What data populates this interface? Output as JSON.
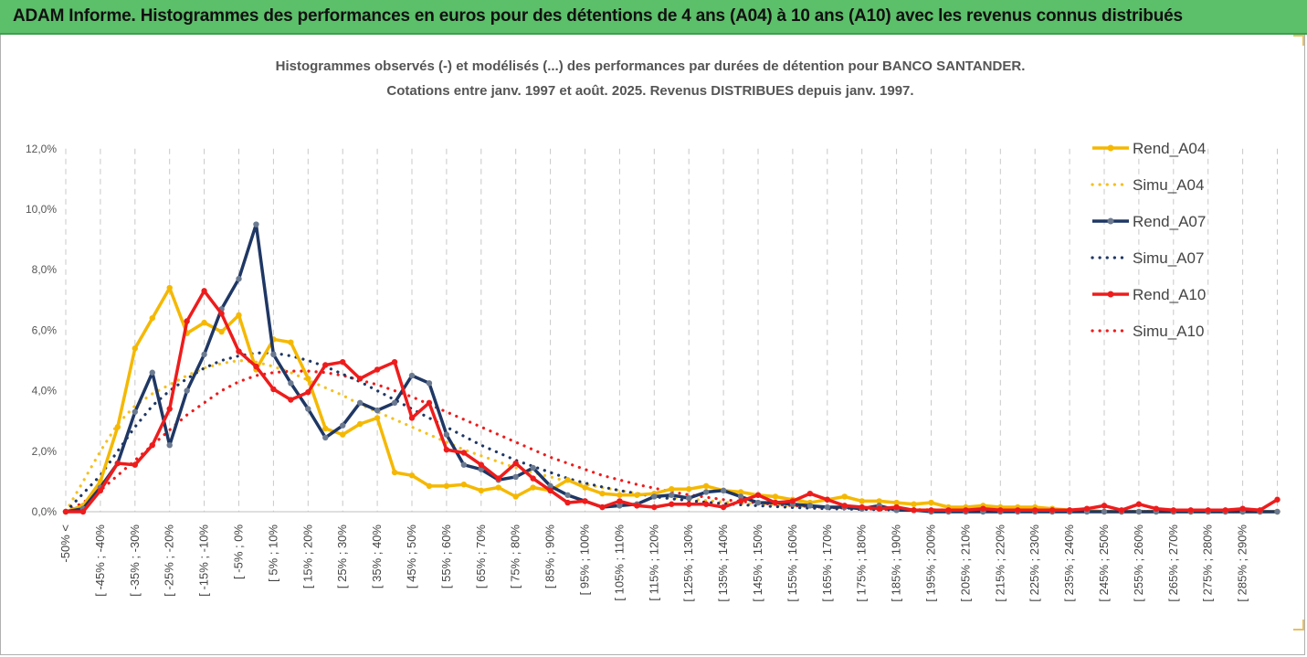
{
  "banner": {
    "title": "ADAM Informe. Histogrammes des performances en euros pour des détentions de 4 ans (A04) à 10 ans (A10) avec les revenus connus distribués"
  },
  "chart_data": {
    "type": "line",
    "title_line1": "Histogrammes observés (-) et modélisés (...) des performances par durées de détention pour BANCO SANTANDER.",
    "title_line2": "Cotations entre janv. 1997 et août. 2025. Revenus DISTRIBUES depuis janv. 1997.",
    "xlabel": "",
    "ylabel": "",
    "ylim": [
      0,
      12
    ],
    "y_ticks": [
      "0,0%",
      "2,0%",
      "4,0%",
      "6,0%",
      "8,0%",
      "10,0%",
      "12,0%"
    ],
    "grid": "vertical dashed",
    "legend_position": "right",
    "x_labels": [
      "-50% <",
      "[ -45% ; -40%",
      "[ -35% ; -30%",
      "[ -25% ; -20%",
      "[ -15% ; -10%",
      "[ -5% ; 0%",
      "[ 5% ; 10%",
      "[ 15% ; 20%",
      "[ 25% ; 30%",
      "[ 35% ; 40%",
      "[ 45% ; 50%",
      "[ 55% ; 60%",
      "[ 65% ; 70%",
      "[ 75% ; 80%",
      "[ 85% ; 90%",
      "[ 95% ; 100%",
      "[ 105% ; 110%",
      "[ 115% ; 120%",
      "[ 125% ; 130%",
      "[ 135% ; 140%",
      "[ 145% ; 150%",
      "[ 155% ; 160%",
      "[ 165% ; 170%",
      "[ 175% ; 180%",
      "[ 185% ; 190%",
      "[ 195% ; 200%",
      "[ 205% ; 210%",
      "[ 215% ; 220%",
      "[ 225% ; 230%",
      "[ 235% ; 240%",
      "[ 245% ; 250%",
      "[ 255% ; 260%",
      "[ 265% ; 270%",
      "[ 275% ; 280%",
      "[ 285% ; 290%"
    ],
    "series": [
      {
        "name": "Rend_A04",
        "color": "#f5b800",
        "style": "solid",
        "values": [
          0.0,
          0.2,
          1.0,
          2.8,
          5.4,
          6.4,
          7.4,
          5.9,
          6.25,
          5.95,
          6.5,
          4.7,
          5.7,
          5.6,
          4.4,
          2.75,
          2.55,
          2.9,
          3.1,
          1.3,
          1.2,
          0.85,
          0.85,
          0.9,
          0.7,
          0.8,
          0.5,
          0.8,
          0.7,
          1.05,
          0.8,
          0.6,
          0.55,
          0.55,
          0.6,
          0.75,
          0.75,
          0.85,
          0.7,
          0.65,
          0.55,
          0.5,
          0.4,
          0.3,
          0.4,
          0.5,
          0.35,
          0.35,
          0.3,
          0.25,
          0.3,
          0.15,
          0.15,
          0.2,
          0.15,
          0.15,
          0.15,
          0.1,
          0.05,
          0.05,
          0.0,
          0.0,
          0.0,
          0.0,
          0.0,
          0.0,
          0.0,
          0.0,
          0.0,
          0.0,
          0.0
        ]
      },
      {
        "name": "Simu_A04",
        "color": "#f5c020",
        "style": "dotted",
        "values": [
          0.0,
          1.0,
          2.0,
          2.9,
          3.5,
          3.9,
          4.2,
          4.5,
          4.75,
          4.9,
          5.0,
          4.95,
          4.8,
          4.6,
          4.35,
          4.1,
          3.85,
          3.55,
          3.3,
          3.05,
          2.8,
          2.55,
          2.3,
          2.05,
          1.85,
          1.65,
          1.45,
          1.3,
          1.15,
          1.0,
          0.9,
          0.8,
          0.7,
          0.6,
          0.55,
          0.48,
          0.42,
          0.37,
          0.32,
          0.28,
          0.25,
          0.22,
          0.19,
          0.17,
          0.15,
          0.13,
          0.12,
          0.1,
          0.09,
          0.08,
          0.07,
          0.06,
          0.06,
          0.05,
          0.05,
          0.04,
          0.04,
          0.03,
          0.03,
          0.03,
          0.02,
          0.02,
          0.02,
          0.02,
          0.02,
          0.01,
          0.01,
          0.01,
          0.01,
          0.01,
          0.01
        ]
      },
      {
        "name": "Rend_A07",
        "color": "#1f3764",
        "style": "solid",
        "values": [
          0.0,
          0.1,
          0.8,
          1.6,
          3.3,
          4.6,
          2.2,
          4.0,
          5.2,
          6.7,
          7.7,
          9.5,
          5.2,
          4.25,
          3.4,
          2.45,
          2.85,
          3.6,
          3.35,
          3.6,
          4.5,
          4.25,
          2.55,
          1.55,
          1.4,
          1.05,
          1.15,
          1.45,
          0.85,
          0.55,
          0.35,
          0.15,
          0.2,
          0.25,
          0.5,
          0.55,
          0.45,
          0.65,
          0.7,
          0.5,
          0.3,
          0.3,
          0.25,
          0.2,
          0.15,
          0.15,
          0.1,
          0.2,
          0.05,
          0.05,
          0.0,
          0.0,
          0.0,
          0.0,
          0.0,
          0.0,
          0.0,
          0.0,
          0.0,
          0.0,
          0.0,
          0.0,
          0.0,
          0.0,
          0.0,
          0.0,
          0.0,
          0.0,
          0.0,
          0.0,
          0.0
        ]
      },
      {
        "name": "Simu_A07",
        "color": "#1f3764",
        "style": "dotted",
        "values": [
          0.0,
          0.6,
          1.2,
          2.0,
          2.8,
          3.5,
          4.0,
          4.4,
          4.75,
          5.0,
          5.15,
          5.25,
          5.25,
          5.15,
          5.0,
          4.8,
          4.55,
          4.3,
          4.0,
          3.7,
          3.4,
          3.1,
          2.8,
          2.5,
          2.2,
          1.95,
          1.7,
          1.5,
          1.3,
          1.1,
          0.95,
          0.82,
          0.7,
          0.6,
          0.5,
          0.43,
          0.37,
          0.31,
          0.27,
          0.23,
          0.2,
          0.17,
          0.14,
          0.12,
          0.1,
          0.09,
          0.08,
          0.07,
          0.06,
          0.05,
          0.04,
          0.04,
          0.03,
          0.03,
          0.02,
          0.02,
          0.02,
          0.02,
          0.01,
          0.01,
          0.01,
          0.01,
          0.01,
          0.01,
          0.01,
          0.0,
          0.0,
          0.0,
          0.0,
          0.0,
          0.0
        ]
      },
      {
        "name": "Rend_A10",
        "color": "#ee1c1c",
        "style": "solid",
        "values": [
          0.0,
          0.0,
          0.7,
          1.6,
          1.55,
          2.2,
          3.4,
          6.3,
          7.3,
          6.55,
          5.3,
          4.8,
          4.05,
          3.7,
          3.95,
          4.85,
          4.95,
          4.4,
          4.7,
          4.95,
          3.1,
          3.6,
          2.05,
          1.95,
          1.55,
          1.1,
          1.6,
          1.1,
          0.7,
          0.3,
          0.35,
          0.15,
          0.35,
          0.2,
          0.15,
          0.25,
          0.25,
          0.25,
          0.15,
          0.35,
          0.55,
          0.3,
          0.35,
          0.6,
          0.4,
          0.2,
          0.15,
          0.1,
          0.15,
          0.05,
          0.05,
          0.05,
          0.05,
          0.1,
          0.05,
          0.05,
          0.05,
          0.05,
          0.05,
          0.1,
          0.2,
          0.05,
          0.25,
          0.1,
          0.05,
          0.05,
          0.05,
          0.05,
          0.1,
          0.05,
          0.4
        ]
      },
      {
        "name": "Simu_A10",
        "color": "#ee1c1c",
        "style": "dotted",
        "values": [
          0.0,
          0.3,
          0.7,
          1.2,
          1.7,
          2.2,
          2.7,
          3.2,
          3.6,
          4.0,
          4.3,
          4.5,
          4.6,
          4.65,
          4.65,
          4.6,
          4.5,
          4.35,
          4.2,
          4.0,
          3.8,
          3.55,
          3.3,
          3.05,
          2.8,
          2.55,
          2.3,
          2.05,
          1.8,
          1.6,
          1.4,
          1.2,
          1.05,
          0.9,
          0.78,
          0.66,
          0.56,
          0.48,
          0.4,
          0.34,
          0.29,
          0.24,
          0.2,
          0.17,
          0.14,
          0.12,
          0.1,
          0.08,
          0.07,
          0.06,
          0.05,
          0.04,
          0.04,
          0.03,
          0.03,
          0.02,
          0.02,
          0.02,
          0.01,
          0.01,
          0.01,
          0.01,
          0.01,
          0.01,
          0.01,
          0.01,
          0.0,
          0.0,
          0.0,
          0.0,
          0.0
        ]
      }
    ]
  }
}
